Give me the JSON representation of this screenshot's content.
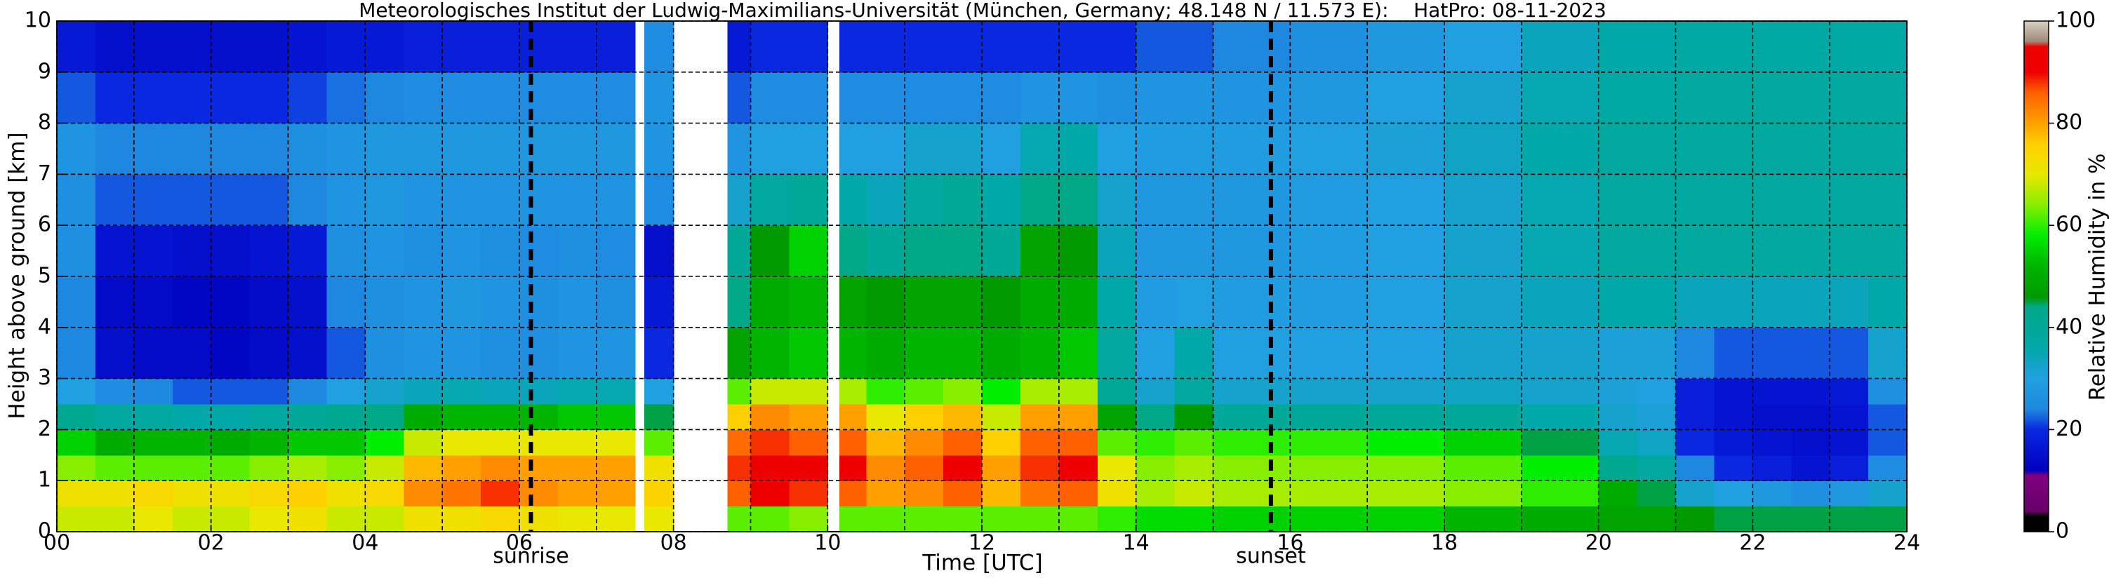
{
  "chart_data": {
    "type": "heatmap",
    "title": "Meteorologisches Institut der Ludwig-Maximilians-Universität (München, Germany; 48.148 N / 11.573 E):    HatPro: 08-11-2023",
    "x_label": "Time [UTC]",
    "y_label": "Height above ground [km]",
    "colorbar_label": "Relative Humidity in %",
    "x": [
      0,
      0.5,
      1,
      1.5,
      2,
      2.5,
      3,
      3.5,
      4,
      4.5,
      5,
      5.5,
      6,
      6.5,
      7,
      7.5,
      7.62,
      8.0,
      8.7,
      9,
      9.5,
      10,
      10.15,
      10.5,
      11,
      11.5,
      12,
      12.5,
      13,
      13.5,
      14,
      14.5,
      15,
      16,
      17,
      18,
      19,
      20,
      20.5,
      21,
      21.5,
      22,
      22.5,
      23,
      23.5,
      24
    ],
    "y": [
      0,
      0.5,
      1,
      1.5,
      2,
      2.5,
      3,
      4,
      5,
      6,
      7,
      8,
      9,
      10
    ],
    "values": [
      [
        68,
        72,
        64,
        55,
        42,
        30,
        24,
        24,
        26,
        26,
        27,
        22,
        17
      ],
      [
        68,
        72,
        62,
        50,
        38,
        25,
        15,
        14,
        16,
        22,
        24,
        20,
        15
      ],
      [
        70,
        74,
        62,
        52,
        38,
        24,
        14,
        14,
        16,
        22,
        24,
        20,
        15
      ],
      [
        68,
        72,
        62,
        52,
        36,
        22,
        14,
        13,
        15,
        22,
        24,
        20,
        15
      ],
      [
        68,
        72,
        62,
        50,
        36,
        22,
        13,
        13,
        15,
        22,
        24,
        20,
        15
      ],
      [
        70,
        74,
        64,
        52,
        38,
        22,
        14,
        14,
        16,
        22,
        24,
        20,
        15
      ],
      [
        72,
        76,
        66,
        54,
        40,
        24,
        15,
        15,
        17,
        24,
        26,
        21,
        16
      ],
      [
        68,
        72,
        64,
        54,
        42,
        30,
        22,
        24,
        26,
        27,
        27,
        23,
        17
      ],
      [
        68,
        74,
        68,
        58,
        44,
        32,
        26,
        26,
        27,
        28,
        28,
        24,
        17
      ],
      [
        72,
        82,
        78,
        68,
        50,
        34,
        27,
        27,
        26,
        27,
        28,
        25,
        18
      ],
      [
        72,
        84,
        80,
        70,
        52,
        35,
        27,
        28,
        27,
        27,
        28,
        25,
        18
      ],
      [
        74,
        88,
        82,
        70,
        52,
        34,
        26,
        27,
        26,
        27,
        28,
        25,
        18
      ],
      [
        72,
        82,
        80,
        70,
        52,
        34,
        26,
        26,
        25,
        27,
        28,
        25,
        18
      ],
      [
        70,
        80,
        80,
        70,
        54,
        35,
        27,
        27,
        26,
        27,
        28,
        25,
        18
      ],
      [
        70,
        80,
        80,
        70,
        54,
        35,
        27,
        26,
        25,
        27,
        28,
        25,
        18
      ],
      [
        null,
        null,
        null,
        null,
        null,
        null,
        null,
        null,
        null,
        null,
        null,
        null,
        null
      ],
      [
        70,
        75,
        72,
        62,
        45,
        30,
        20,
        17,
        15,
        25,
        27,
        27,
        25
      ],
      [
        null,
        null,
        null,
        null,
        null,
        null,
        null,
        null,
        null,
        null,
        null,
        null,
        null
      ],
      [
        62,
        86,
        88,
        85,
        76,
        62,
        48,
        44,
        40,
        32,
        27,
        22,
        17
      ],
      [
        62,
        90,
        92,
        88,
        82,
        68,
        52,
        50,
        46,
        38,
        30,
        25,
        20
      ],
      [
        64,
        88,
        90,
        86,
        80,
        68,
        54,
        52,
        55,
        40,
        30,
        25,
        20
      ],
      [
        null,
        null,
        null,
        null,
        null,
        null,
        null,
        null,
        null,
        null,
        null,
        null,
        null
      ],
      [
        62,
        86,
        90,
        86,
        80,
        66,
        52,
        48,
        44,
        36,
        30,
        25,
        20
      ],
      [
        62,
        80,
        82,
        78,
        70,
        60,
        50,
        46,
        40,
        34,
        30,
        25,
        20
      ],
      [
        62,
        82,
        86,
        82,
        76,
        62,
        52,
        48,
        44,
        38,
        32,
        25,
        20
      ],
      [
        62,
        86,
        90,
        86,
        78,
        64,
        52,
        48,
        44,
        40,
        32,
        25,
        20
      ],
      [
        62,
        78,
        80,
        76,
        68,
        58,
        50,
        46,
        40,
        36,
        30,
        25,
        20
      ],
      [
        62,
        84,
        88,
        86,
        80,
        66,
        52,
        50,
        48,
        44,
        35,
        27,
        20
      ],
      [
        62,
        86,
        90,
        86,
        80,
        66,
        54,
        50,
        46,
        44,
        36,
        27,
        20
      ],
      [
        60,
        72,
        70,
        62,
        48,
        40,
        38,
        36,
        34,
        32,
        30,
        26,
        20
      ],
      [
        56,
        66,
        64,
        60,
        44,
        32,
        30,
        29,
        28,
        28,
        29,
        27,
        22
      ],
      [
        56,
        68,
        66,
        62,
        46,
        38,
        36,
        30,
        28,
        28,
        29,
        27,
        22
      ],
      [
        55,
        66,
        64,
        60,
        40,
        32,
        30,
        29,
        28,
        28,
        29,
        27,
        24
      ],
      [
        55,
        66,
        64,
        60,
        40,
        32,
        30,
        29,
        29,
        29,
        30,
        28,
        26
      ],
      [
        55,
        66,
        64,
        58,
        40,
        32,
        30,
        30,
        30,
        30,
        31,
        30,
        28
      ],
      [
        52,
        64,
        62,
        55,
        40,
        33,
        32,
        32,
        32,
        32,
        33,
        32,
        30
      ],
      [
        50,
        60,
        58,
        45,
        36,
        32,
        32,
        34,
        35,
        35,
        36,
        35,
        34
      ],
      [
        48,
        50,
        42,
        35,
        32,
        31,
        31,
        36,
        38,
        38,
        38,
        37,
        36
      ],
      [
        48,
        45,
        38,
        33,
        31,
        30,
        31,
        36,
        38,
        38,
        38,
        37,
        36
      ],
      [
        46,
        32,
        24,
        20,
        18,
        18,
        24,
        34,
        38,
        38,
        38,
        38,
        37
      ],
      [
        45,
        30,
        20,
        17,
        16,
        16,
        22,
        34,
        38,
        38,
        38,
        38,
        37
      ],
      [
        45,
        28,
        18,
        16,
        15,
        16,
        22,
        34,
        38,
        38,
        38,
        38,
        37
      ],
      [
        45,
        26,
        16,
        15,
        15,
        16,
        22,
        34,
        38,
        38,
        38,
        38,
        37
      ],
      [
        45,
        28,
        18,
        16,
        16,
        17,
        22,
        34,
        38,
        38,
        38,
        38,
        37
      ],
      [
        45,
        32,
        25,
        22,
        22,
        26,
        32,
        36,
        38,
        38,
        38,
        38,
        37
      ]
    ],
    "xlim": [
      0,
      24
    ],
    "ylim": [
      0,
      10
    ],
    "xticks": [
      {
        "value": 0,
        "label": "00"
      },
      {
        "value": 2,
        "label": "02"
      },
      {
        "value": 4,
        "label": "04"
      },
      {
        "value": 6,
        "label": "06"
      },
      {
        "value": 8,
        "label": "08"
      },
      10,
      12,
      14,
      16,
      18,
      20,
      22,
      24
    ],
    "xminor": [
      1,
      3,
      5,
      7,
      9,
      11,
      13,
      15,
      17,
      19,
      21,
      23
    ],
    "yticks": [
      0,
      1,
      2,
      3,
      4,
      5,
      6,
      7,
      8,
      9,
      10
    ],
    "grid": true,
    "annotations": [
      {
        "text": "sunrise",
        "x": 6.15
      },
      {
        "text": "sunset",
        "x": 15.75
      }
    ],
    "clim": [
      0,
      100
    ],
    "cticks": [
      0,
      20,
      40,
      60,
      80,
      100
    ],
    "colorscale": [
      [
        0,
        "#000000"
      ],
      [
        3,
        "#000000"
      ],
      [
        4,
        "#660066"
      ],
      [
        11,
        "#800080"
      ],
      [
        12,
        "#0000c0"
      ],
      [
        20,
        "#0a28e0"
      ],
      [
        24,
        "#1e88e0"
      ],
      [
        30,
        "#20a0e0"
      ],
      [
        36,
        "#00a8a8"
      ],
      [
        44,
        "#00a888"
      ],
      [
        46,
        "#009a00"
      ],
      [
        52,
        "#00b400"
      ],
      [
        58,
        "#00ee00"
      ],
      [
        64,
        "#88ee00"
      ],
      [
        70,
        "#e8e800"
      ],
      [
        76,
        "#ffd000"
      ],
      [
        80,
        "#ffa000"
      ],
      [
        86,
        "#ff6000"
      ],
      [
        90,
        "#ee0000"
      ],
      [
        95,
        "#ee0000"
      ],
      [
        96,
        "#a08878"
      ],
      [
        100,
        "#d8d0c0"
      ]
    ]
  }
}
